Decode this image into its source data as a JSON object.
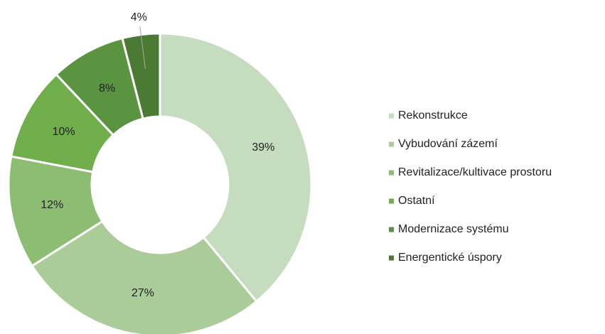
{
  "chart_data": {
    "type": "donut",
    "categories": [
      "Rekonstrukce",
      "Vybudování zázemí",
      "Revitalizace/kultivace prostoru",
      "Ostatní",
      "Modernizace systému",
      "Energentické úspory"
    ],
    "values": [
      39,
      27,
      12,
      10,
      8,
      4
    ],
    "value_labels": [
      "39%",
      "27%",
      "12%",
      "10%",
      "8%",
      "4%"
    ],
    "colors": [
      "#c6dcbf",
      "#a9cc98",
      "#8dbd72",
      "#6fae4a",
      "#5a9440",
      "#4b7a35"
    ],
    "legend": "right"
  }
}
